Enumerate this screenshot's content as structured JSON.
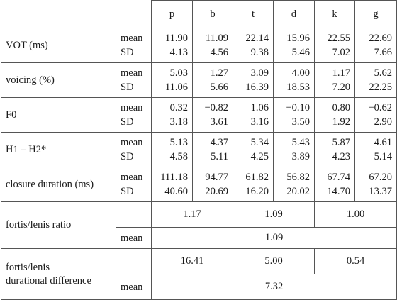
{
  "columns": [
    "p",
    "b",
    "t",
    "d",
    "k",
    "g"
  ],
  "stat_labels": {
    "mean": "mean",
    "sd": "SD"
  },
  "rows": [
    {
      "label": "VOT (ms)",
      "mean": [
        "11.90",
        "11.09",
        "22.14",
        "15.96",
        "22.55",
        "22.69"
      ],
      "sd": [
        "4.13",
        "4.56",
        "9.38",
        "5.46",
        "7.02",
        "7.66"
      ]
    },
    {
      "label": "voicing (%)",
      "mean": [
        "5.03",
        "1.27",
        "3.09",
        "4.00",
        "1.17",
        "5.62"
      ],
      "sd": [
        "11.06",
        "5.66",
        "16.39",
        "18.53",
        "7.20",
        "22.25"
      ]
    },
    {
      "label": "F0",
      "mean": [
        "0.32",
        "−0.82",
        "1.06",
        "−0.10",
        "0.80",
        "−0.62"
      ],
      "sd": [
        "3.18",
        "3.61",
        "3.16",
        "3.50",
        "1.92",
        "2.90"
      ]
    },
    {
      "label": "H1 – H2*",
      "mean": [
        "5.13",
        "4.37",
        "5.34",
        "5.43",
        "5.87",
        "4.61"
      ],
      "sd": [
        "4.58",
        "5.11",
        "4.25",
        "3.89",
        "4.23",
        "5.14"
      ]
    },
    {
      "label": "closure duration (ms)",
      "mean": [
        "111.18",
        "94.77",
        "61.82",
        "56.82",
        "67.74",
        "67.20"
      ],
      "sd": [
        "40.60",
        "20.69",
        "16.20",
        "20.02",
        "14.70",
        "13.37"
      ]
    }
  ],
  "ratio": {
    "label": "fortis/lenis ratio",
    "pairs": [
      "1.17",
      "1.09",
      "1.00"
    ],
    "mean_label": "mean",
    "mean": "1.09"
  },
  "difference": {
    "label_line1": "fortis/lenis",
    "label_line2": "durational difference",
    "pairs": [
      "16.41",
      "5.00",
      "0.54"
    ],
    "mean_label": "mean",
    "mean": "7.32"
  }
}
